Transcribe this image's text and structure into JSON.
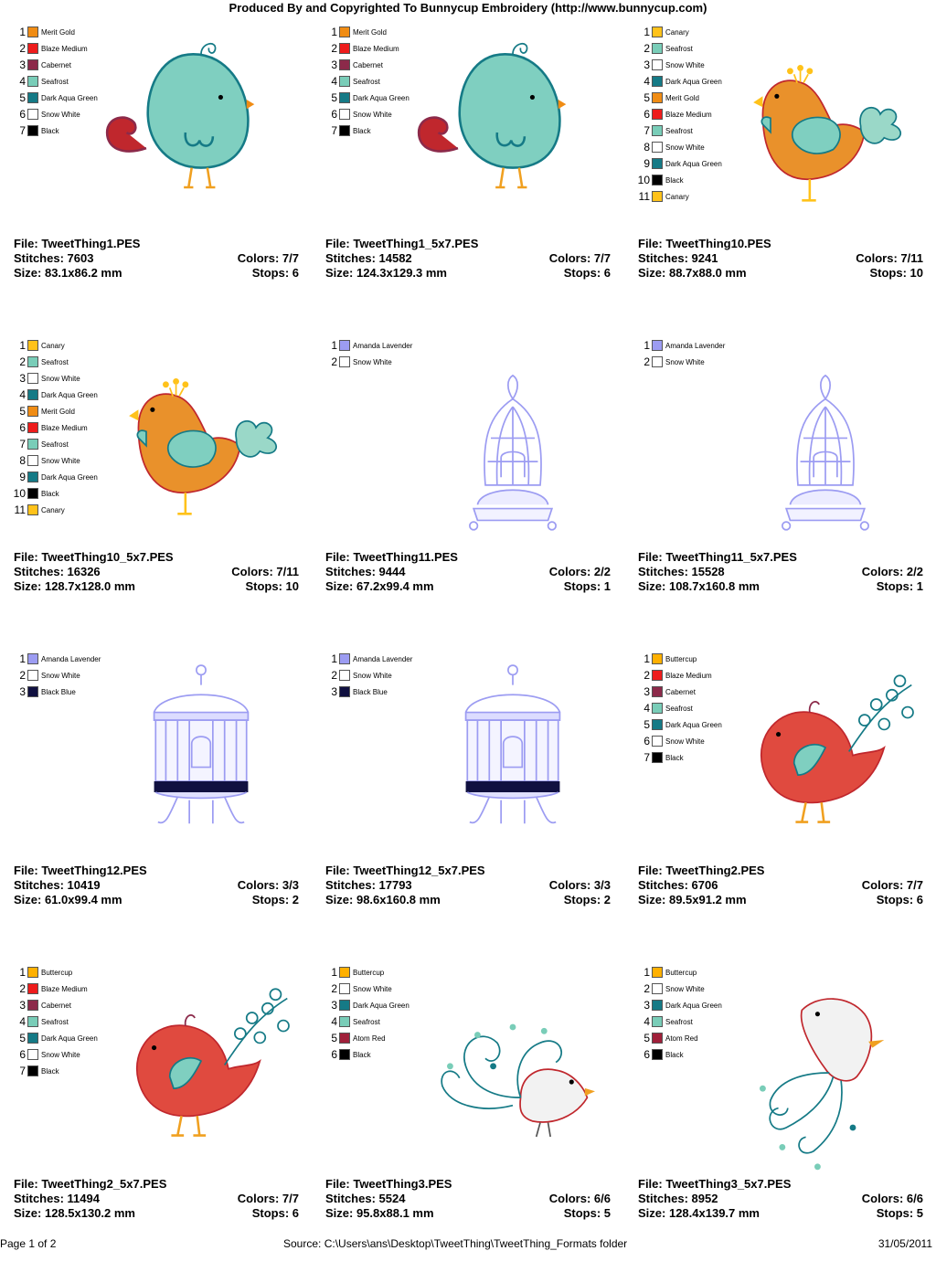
{
  "header": {
    "title": "Produced By and Copyrighted To Bunnycup Embroidery (http://www.bunnycup.com)"
  },
  "labels": {
    "file": "File: ",
    "stitches": "Stitches: ",
    "size": "Size: ",
    "colors": "Colors: ",
    "stops": "Stops: "
  },
  "colors": {
    "Merit Gold": "#f08c14",
    "Blaze Medium": "#ee1c1c",
    "Cabernet": "#8c2a4a",
    "Seafrost": "#79cdb8",
    "Dark Aqua Green": "#157a86",
    "Snow White": "#ffffff",
    "Black": "#000000",
    "Canary": "#ffc21a",
    "Amanda Lavender": "#9c9cf2",
    "Black Blue": "#101040",
    "Buttercup": "#ffb000",
    "Atom Red": "#a0203a"
  },
  "designs": [
    {
      "file": "TweetThing1.PES",
      "stitches": "7603",
      "size": "83.1x86.2 mm",
      "colors": "7/7",
      "stops": "6",
      "art": "bird-teal",
      "palette": [
        "Merit Gold",
        "Blaze Medium",
        "Cabernet",
        "Seafrost",
        "Dark Aqua Green",
        "Snow White",
        "Black"
      ]
    },
    {
      "file": "TweetThing1_5x7.PES",
      "stitches": "14582",
      "size": "124.3x129.3 mm",
      "colors": "7/7",
      "stops": "6",
      "art": "bird-teal",
      "palette": [
        "Merit Gold",
        "Blaze Medium",
        "Cabernet",
        "Seafrost",
        "Dark Aqua Green",
        "Snow White",
        "Black"
      ]
    },
    {
      "file": "TweetThing10.PES",
      "stitches": "9241",
      "size": "88.7x88.0 mm",
      "colors": "7/11",
      "stops": "10",
      "art": "bird-orange",
      "palette": [
        "Canary",
        "Seafrost",
        "Snow White",
        "Dark Aqua Green",
        "Merit Gold",
        "Blaze Medium",
        "Seafrost",
        "Snow White",
        "Dark Aqua Green",
        "Black",
        "Canary"
      ]
    },
    {
      "file": "TweetThing10_5x7.PES",
      "stitches": "16326",
      "size": "128.7x128.0 mm",
      "colors": "7/11",
      "stops": "10",
      "art": "bird-orange",
      "palette": [
        "Canary",
        "Seafrost",
        "Snow White",
        "Dark Aqua Green",
        "Merit Gold",
        "Blaze Medium",
        "Seafrost",
        "Snow White",
        "Dark Aqua Green",
        "Black",
        "Canary"
      ]
    },
    {
      "file": "TweetThing11.PES",
      "stitches": "9444",
      "size": "67.2x99.4 mm",
      "colors": "2/2",
      "stops": "1",
      "art": "cage-dome",
      "palette": [
        "Amanda Lavender",
        "Snow White"
      ]
    },
    {
      "file": "TweetThing11_5x7.PES",
      "stitches": "15528",
      "size": "108.7x160.8 mm",
      "colors": "2/2",
      "stops": "1",
      "art": "cage-dome",
      "palette": [
        "Amanda Lavender",
        "Snow White"
      ]
    },
    {
      "file": "TweetThing12.PES",
      "stitches": "10419",
      "size": "61.0x99.4 mm",
      "colors": "3/3",
      "stops": "2",
      "art": "cage-cyl",
      "palette": [
        "Amanda Lavender",
        "Snow White",
        "Black Blue"
      ]
    },
    {
      "file": "TweetThing12_5x7.PES",
      "stitches": "17793",
      "size": "98.6x160.8 mm",
      "colors": "3/3",
      "stops": "2",
      "art": "cage-cyl",
      "palette": [
        "Amanda Lavender",
        "Snow White",
        "Black Blue"
      ]
    },
    {
      "file": "TweetThing2.PES",
      "stitches": "6706",
      "size": "89.5x91.2 mm",
      "colors": "7/7",
      "stops": "6",
      "art": "bird-red",
      "palette": [
        "Buttercup",
        "Blaze Medium",
        "Cabernet",
        "Seafrost",
        "Dark Aqua Green",
        "Snow White",
        "Black"
      ]
    },
    {
      "file": "TweetThing2_5x7.PES",
      "stitches": "11494",
      "size": "128.5x130.2 mm",
      "colors": "7/7",
      "stops": "6",
      "art": "bird-red",
      "palette": [
        "Buttercup",
        "Blaze Medium",
        "Cabernet",
        "Seafrost",
        "Dark Aqua Green",
        "Snow White",
        "Black"
      ]
    },
    {
      "file": "TweetThing3.PES",
      "stitches": "5524",
      "size": "95.8x88.1 mm",
      "colors": "6/6",
      "stops": "5",
      "art": "bird-swirl",
      "palette": [
        "Buttercup",
        "Snow White",
        "Dark Aqua Green",
        "Seafrost",
        "Atom Red",
        "Black"
      ]
    },
    {
      "file": "TweetThing3_5x7.PES",
      "stitches": "8952",
      "size": "128.4x139.7 mm",
      "colors": "6/6",
      "stops": "5",
      "art": "bird-swirl-up",
      "palette": [
        "Buttercup",
        "Snow White",
        "Dark Aqua Green",
        "Seafrost",
        "Atom Red",
        "Black"
      ]
    }
  ],
  "footer": {
    "page": "Page 1 of 2",
    "source": "Source: C:\\Users\\ans\\Desktop\\TweetThing\\TweetThing_Formats folder",
    "date": "31/05/2011"
  }
}
